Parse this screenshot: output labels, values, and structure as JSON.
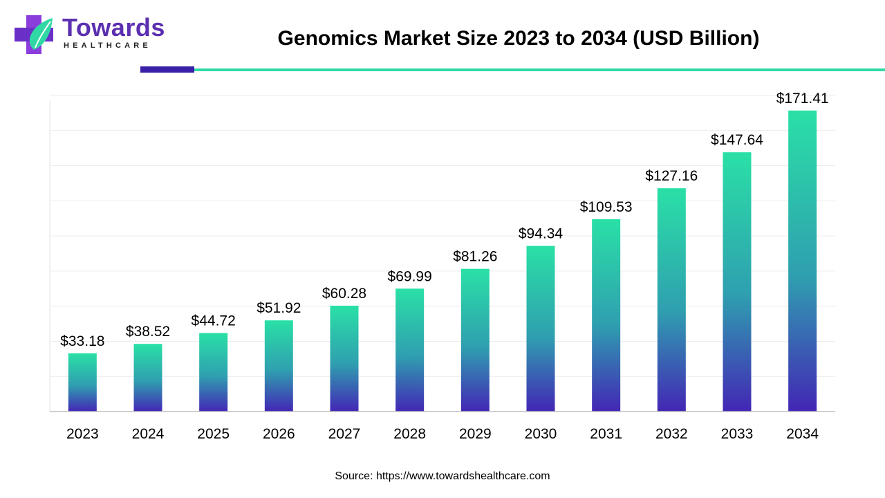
{
  "brand": {
    "name": "Towards",
    "subtitle": "HEALTHCARE",
    "logo_icon": "medical-cross-leaf-icon",
    "colors": {
      "purple": "#5b2fb0",
      "teal": "#2fd8a5"
    }
  },
  "source_text": "Source: https://www.towardshealthcare.com",
  "chart_data": {
    "type": "bar",
    "title": "Genomics Market Size 2023 to 2034 (USD Billion)",
    "xlabel": "",
    "ylabel": "",
    "categories": [
      "2023",
      "2024",
      "2025",
      "2026",
      "2027",
      "2028",
      "2029",
      "2030",
      "2031",
      "2032",
      "2033",
      "2034"
    ],
    "values": [
      33.18,
      38.52,
      44.72,
      51.92,
      60.28,
      69.99,
      81.26,
      94.34,
      109.53,
      127.16,
      147.64,
      171.41
    ],
    "value_labels": [
      "$33.18",
      "$38.52",
      "$44.72",
      "$51.92",
      "$60.28",
      "$69.99",
      "$81.26",
      "$94.34",
      "$109.53",
      "$127.16",
      "$147.64",
      "$171.41"
    ],
    "ylim": [
      0,
      180
    ],
    "grid": true,
    "legend": "none",
    "colors": {
      "bar_top": "#2ae0a6",
      "bar_mid": "#2f9fb0",
      "bar_bottom": "#4326b5",
      "grid": "#ececec",
      "axis": "#bfbfbf"
    }
  }
}
